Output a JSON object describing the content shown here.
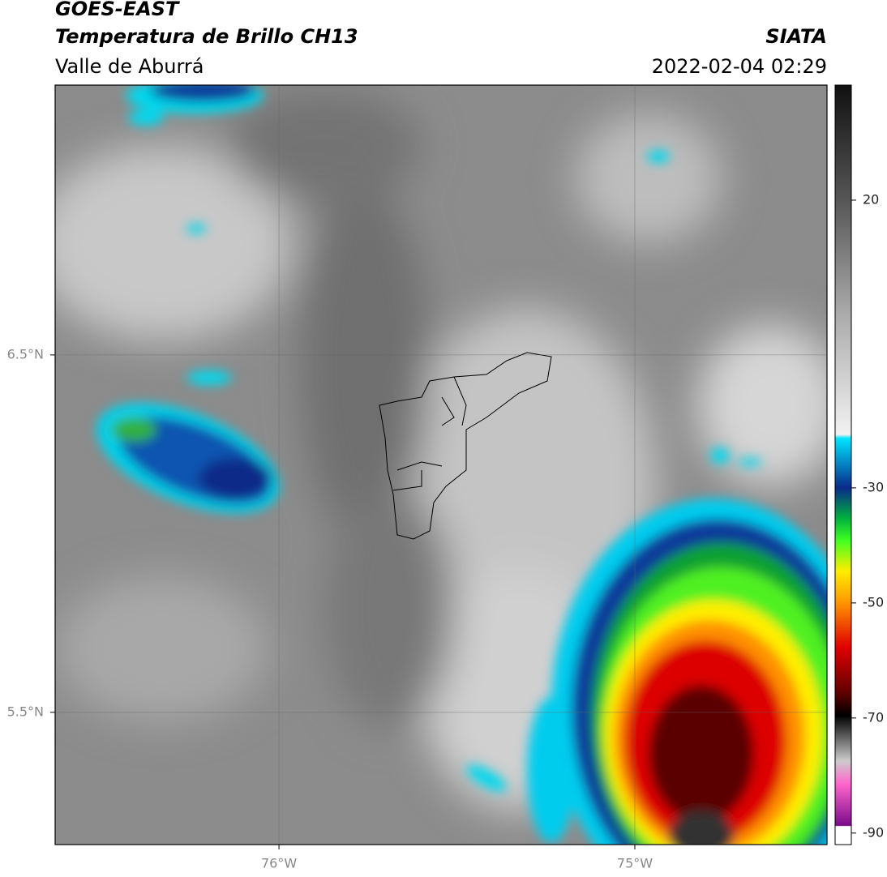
{
  "header": {
    "title": "GOES-EAST",
    "subtitle": "Temperatura de Brillo CH13",
    "region": "Valle de Aburrá",
    "source": "SIATA",
    "datetime": "2022-02-04 02:29"
  },
  "map": {
    "lon_lim": [
      -76.629,
      -74.46
    ],
    "lat_lim": [
      5.13,
      7.255
    ],
    "lon_ticks": [
      {
        "value": -76,
        "label": "76°W"
      },
      {
        "value": -75,
        "label": "75°W"
      }
    ],
    "lat_ticks": [
      {
        "value": 6.5,
        "label": "6.5°N"
      },
      {
        "value": 5.5,
        "label": "5.5°N"
      }
    ]
  },
  "colorbar": {
    "lim": [
      -92,
      40
    ],
    "ticks": [
      20,
      -30,
      -50,
      -70,
      -90
    ]
  }
}
